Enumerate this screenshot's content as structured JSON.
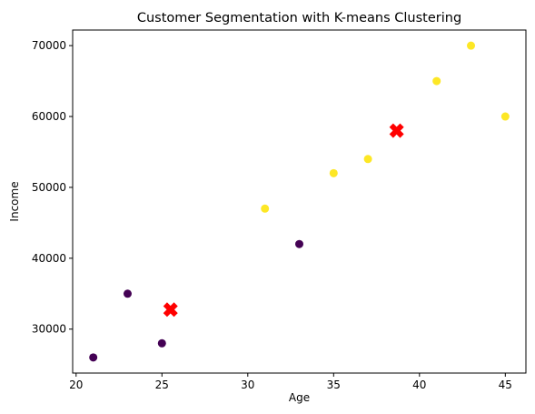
{
  "chart_data": {
    "type": "scatter",
    "title": "Customer Segmentation with K-means Clustering",
    "xlabel": "Age",
    "ylabel": "Income",
    "xlim": [
      19.8,
      46.2
    ],
    "ylim": [
      23800,
      72200
    ],
    "xticks": [
      20,
      25,
      30,
      35,
      40,
      45
    ],
    "yticks": [
      30000,
      40000,
      50000,
      60000,
      70000
    ],
    "grid": false,
    "legend": "none",
    "clusters": [
      {
        "color": "#440154",
        "points": [
          {
            "x": 21,
            "y": 26000
          },
          {
            "x": 23,
            "y": 35000
          },
          {
            "x": 25,
            "y": 28000
          },
          {
            "x": 33,
            "y": 42000
          }
        ]
      },
      {
        "color": "#fde725",
        "points": [
          {
            "x": 31,
            "y": 47000
          },
          {
            "x": 35,
            "y": 52000
          },
          {
            "x": 37,
            "y": 54000
          },
          {
            "x": 41,
            "y": 65000
          },
          {
            "x": 43,
            "y": 70000
          },
          {
            "x": 45,
            "y": 60000
          }
        ]
      }
    ],
    "centroids": {
      "color": "#ff0000",
      "marker": "X",
      "points": [
        {
          "x": 25.5,
          "y": 32750
        },
        {
          "x": 38.67,
          "y": 58000
        }
      ]
    }
  }
}
